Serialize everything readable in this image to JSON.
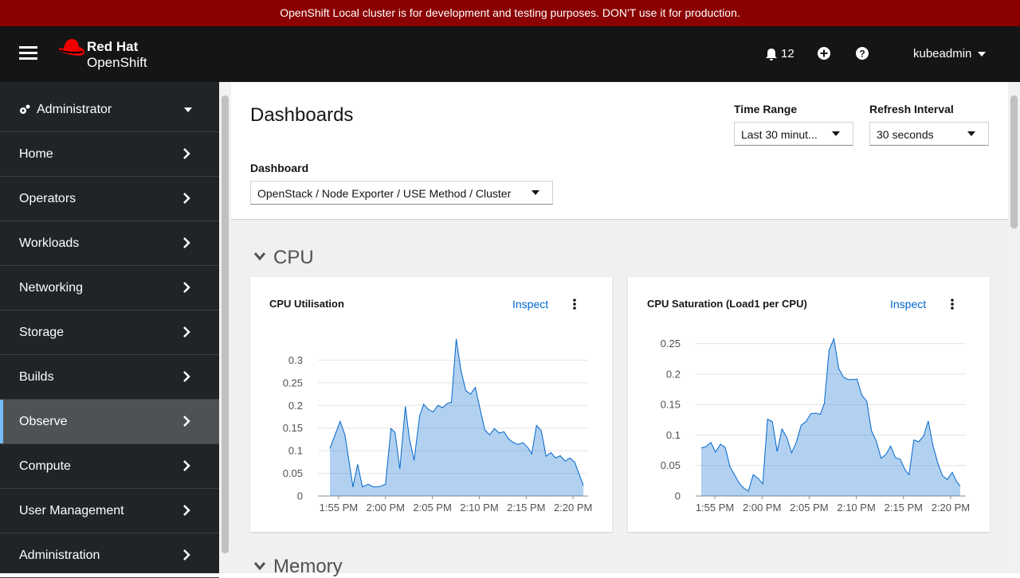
{
  "banner": {
    "text": "OpenShift Local cluster is for development and testing purposes. DON'T use it for production."
  },
  "header": {
    "brand_top": "Red Hat",
    "brand_bottom": "OpenShift",
    "notifications": 12,
    "user": "kubeadmin"
  },
  "sidebar": {
    "perspective": "Administrator",
    "items": [
      "Home",
      "Operators",
      "Workloads",
      "Networking",
      "Storage",
      "Builds",
      "Observe",
      "Compute",
      "User Management",
      "Administration"
    ]
  },
  "page": {
    "title": "Dashboards",
    "time_range": {
      "label": "Time Range",
      "value": "Last 30 minut..."
    },
    "refresh": {
      "label": "Refresh Interval",
      "value": "30 seconds"
    },
    "dashboard": {
      "label": "Dashboard",
      "value": "OpenStack / Node Exporter / USE Method / Cluster"
    },
    "sections": [
      "CPU",
      "Memory"
    ]
  },
  "panels": [
    {
      "inspect": "Inspect",
      "chart_data": {
        "type": "area",
        "title": "CPU Utilisation",
        "color": "#0066cc",
        "grid": true,
        "x": [
          834.07,
          835.17,
          835.68,
          836.53,
          837.03,
          837.54,
          838.14,
          838.73,
          839.41,
          840.0,
          840.59,
          841.02,
          841.53,
          842.12,
          842.54,
          843.05,
          843.64,
          844.07,
          844.58,
          845.08,
          845.59,
          846.1,
          846.61,
          847.03,
          847.54,
          848.05,
          848.56,
          849.07,
          849.58,
          850.08,
          850.59,
          851.1,
          851.61,
          852.12,
          852.63,
          853.14,
          853.64,
          854.15,
          854.66,
          855.17,
          855.59,
          856.1,
          856.61,
          857.12,
          857.63,
          858.14,
          858.64,
          859.15,
          859.66,
          860.17,
          860.68,
          861.1
        ],
        "values": [
          0.105,
          0.165,
          0.135,
          0.02,
          0.07,
          0.02,
          0.026,
          0.02,
          0.021,
          0.026,
          0.149,
          0.14,
          0.06,
          0.198,
          0.128,
          0.079,
          0.177,
          0.203,
          0.191,
          0.186,
          0.2,
          0.195,
          0.205,
          0.207,
          0.347,
          0.277,
          0.233,
          0.225,
          0.24,
          0.193,
          0.146,
          0.135,
          0.149,
          0.139,
          0.142,
          0.126,
          0.118,
          0.114,
          0.118,
          0.107,
          0.093,
          0.156,
          0.144,
          0.088,
          0.096,
          0.084,
          0.089,
          0.077,
          0.084,
          0.075,
          0.046,
          0.023
        ],
        "xlim": [
          832.8,
          861.6
        ],
        "xticks": [
          {
            "value": 835,
            "label": "1:55 PM"
          },
          {
            "value": 840,
            "label": "2:00 PM"
          },
          {
            "value": 845,
            "label": "2:05 PM"
          },
          {
            "value": 850,
            "label": "2:10 PM"
          },
          {
            "value": 855,
            "label": "2:15 PM"
          },
          {
            "value": 860,
            "label": "2:20 PM"
          }
        ],
        "ylim": [
          0,
          0.35
        ],
        "yticks": [
          0,
          0.05,
          0.1,
          0.15,
          0.2,
          0.25,
          0.3
        ]
      }
    },
    {
      "inspect": "Inspect",
      "chart_data": {
        "type": "area",
        "title": "CPU Saturation (Load1 per CPU)",
        "color": "#0066cc",
        "grid": true,
        "x": [
          833.56,
          834.07,
          834.58,
          835.08,
          835.59,
          836.1,
          836.61,
          837.12,
          837.63,
          838.14,
          838.56,
          839.07,
          839.58,
          840.08,
          840.59,
          841.1,
          841.61,
          842.12,
          842.63,
          843.14,
          843.64,
          844.15,
          844.66,
          845.17,
          845.68,
          846.19,
          846.61,
          847.12,
          847.63,
          848.14,
          848.64,
          849.15,
          849.66,
          850.08,
          850.59,
          851.1,
          851.61,
          852.12,
          852.63,
          853.14,
          853.64,
          854.15,
          854.66,
          855.17,
          855.59,
          856.1,
          856.61,
          857.12,
          857.63,
          858.14,
          858.64,
          859.15,
          859.66,
          860.17,
          860.59,
          861.02
        ],
        "values": [
          0.079,
          0.081,
          0.088,
          0.072,
          0.085,
          0.08,
          0.048,
          0.034,
          0.02,
          0.012,
          0.008,
          0.035,
          0.029,
          0.02,
          0.126,
          0.122,
          0.073,
          0.11,
          0.096,
          0.071,
          0.088,
          0.116,
          0.122,
          0.135,
          0.136,
          0.134,
          0.152,
          0.24,
          0.258,
          0.209,
          0.195,
          0.191,
          0.191,
          0.192,
          0.165,
          0.156,
          0.107,
          0.09,
          0.062,
          0.068,
          0.082,
          0.063,
          0.06,
          0.043,
          0.035,
          0.092,
          0.089,
          0.098,
          0.123,
          0.082,
          0.054,
          0.033,
          0.027,
          0.039,
          0.025,
          0.016
        ],
        "xlim": [
          832.97,
          861.61
        ],
        "xticks": [
          {
            "value": 835,
            "label": "1:55 PM"
          },
          {
            "value": 840,
            "label": "2:00 PM"
          },
          {
            "value": 845,
            "label": "2:05 PM"
          },
          {
            "value": 850,
            "label": "2:10 PM"
          },
          {
            "value": 855,
            "label": "2:15 PM"
          },
          {
            "value": 860,
            "label": "2:20 PM"
          }
        ],
        "ylim": [
          0,
          0.26
        ],
        "yticks": [
          0,
          0.05,
          0.1,
          0.15,
          0.2,
          0.25
        ]
      }
    }
  ]
}
